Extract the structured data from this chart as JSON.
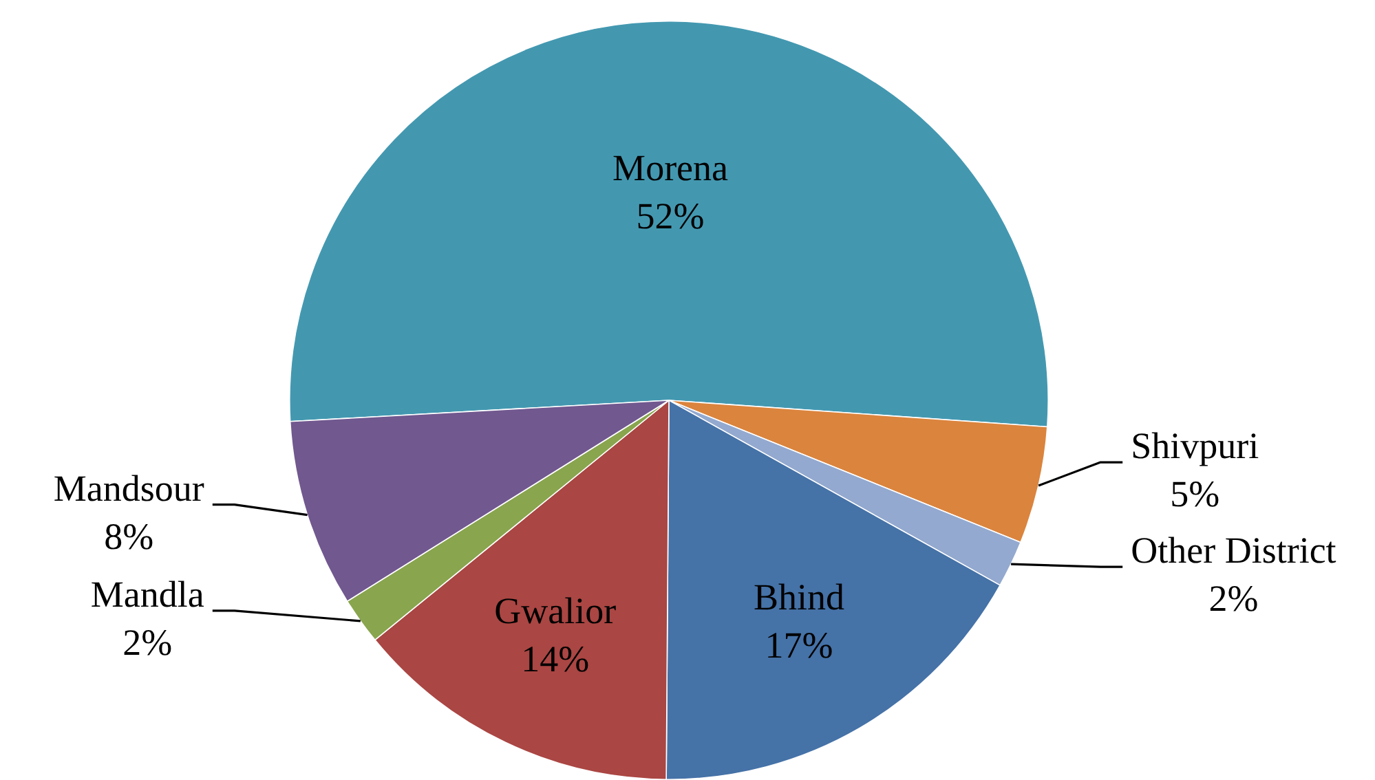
{
  "chart_data": {
    "type": "pie",
    "categories": [
      "Morena",
      "Shivpuri",
      "Other District",
      "Bhind",
      "Gwalior",
      "Mandla",
      "Mandsour"
    ],
    "values": [
      52,
      5,
      2,
      17,
      14,
      2,
      8
    ],
    "colors": [
      "#4398b0",
      "#db843d",
      "#93a9cf",
      "#4572a7",
      "#aa4643",
      "#89a54e",
      "#71588f"
    ],
    "value_labels": [
      "52%",
      "5%",
      "2%",
      "17%",
      "14%",
      "2%",
      "8%"
    ]
  }
}
